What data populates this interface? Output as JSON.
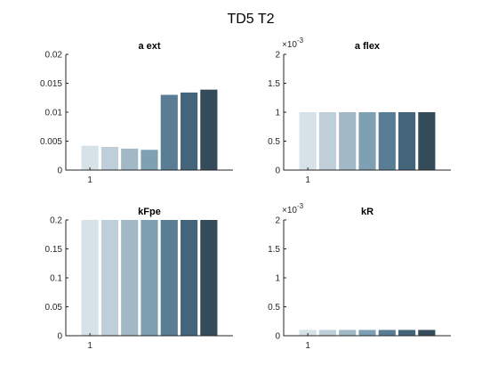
{
  "figure_title": "TD5 T2",
  "bar_colors": [
    "#d6e1e8",
    "#bfcfda",
    "#a2b8c7",
    "#7f9fb3",
    "#587d94",
    "#44647a",
    "#344b5a"
  ],
  "chart_data": [
    {
      "type": "bar",
      "title": "a ext",
      "xticks": [
        "1"
      ],
      "values": [
        0.0042,
        0.004,
        0.0037,
        0.0035,
        0.013,
        0.0134,
        0.0139
      ],
      "ylim": [
        0,
        0.02
      ],
      "yticks": [
        0,
        0.005,
        0.01,
        0.015,
        0.02
      ],
      "ytick_labels": [
        "0",
        "0.005",
        "0.01",
        "0.015",
        "0.02"
      ],
      "exponent_label": ""
    },
    {
      "type": "bar",
      "title": "a flex",
      "xticks": [
        "1"
      ],
      "values": [
        0.001,
        0.001,
        0.001,
        0.001,
        0.001,
        0.001,
        0.001
      ],
      "ylim": [
        0,
        0.002
      ],
      "yticks": [
        0,
        0.0005,
        0.001,
        0.0015,
        0.002
      ],
      "ytick_labels": [
        "0",
        "0.5",
        "1",
        "1.5",
        "2"
      ],
      "exponent_label": "10^-3"
    },
    {
      "type": "bar",
      "title": "kFpe",
      "xticks": [
        "1"
      ],
      "values": [
        0.2,
        0.2,
        0.2,
        0.2,
        0.2,
        0.2,
        0.2
      ],
      "ylim": [
        0,
        0.2
      ],
      "yticks": [
        0,
        0.05,
        0.1,
        0.15,
        0.2
      ],
      "ytick_labels": [
        "0",
        "0.05",
        "0.1",
        "0.15",
        "0.2"
      ],
      "exponent_label": ""
    },
    {
      "type": "bar",
      "title": "kR",
      "xticks": [
        "1"
      ],
      "values": [
        0.0001,
        0.0001,
        0.0001,
        0.0001,
        0.0001,
        0.0001,
        0.0001
      ],
      "ylim": [
        0,
        0.002
      ],
      "yticks": [
        0,
        0.0005,
        0.001,
        0.0015,
        0.002
      ],
      "ytick_labels": [
        "0",
        "0.5",
        "1",
        "1.5",
        "2"
      ],
      "exponent_label": "10^-3"
    }
  ]
}
